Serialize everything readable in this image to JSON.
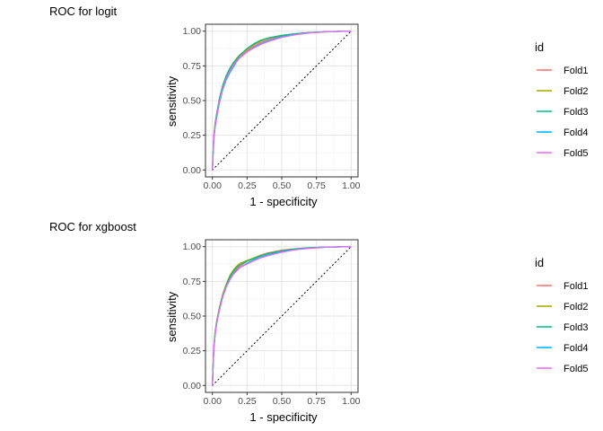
{
  "colors": {
    "Fold1": "#F8766D",
    "Fold2": "#A3A500",
    "Fold3": "#00BF7D",
    "Fold4": "#00B0F6",
    "Fold5": "#E76BF3"
  },
  "chart_data": [
    {
      "type": "line",
      "title": "ROC for logit",
      "xlabel": "1 - specificity",
      "ylabel": "sensitivity",
      "xlim": [
        0,
        1
      ],
      "ylim": [
        0,
        1
      ],
      "xticks": [
        "0.00",
        "0.25",
        "0.50",
        "0.75",
        "1.00"
      ],
      "yticks": [
        "0.00",
        "0.25",
        "0.50",
        "0.75",
        "1.00"
      ],
      "grid": true,
      "legend": {
        "title": "id",
        "position": "right"
      },
      "reference_line": {
        "style": "dotted",
        "from": [
          0,
          0
        ],
        "to": [
          1,
          1
        ]
      },
      "x": [
        0,
        0.01,
        0.02,
        0.03,
        0.05,
        0.075,
        0.1,
        0.125,
        0.15,
        0.175,
        0.2,
        0.25,
        0.3,
        0.35,
        0.4,
        0.5,
        0.6,
        0.7,
        0.8,
        0.9,
        1
      ],
      "series": [
        {
          "name": "Fold1",
          "values": [
            0,
            0.24,
            0.33,
            0.39,
            0.5,
            0.6,
            0.67,
            0.72,
            0.76,
            0.795,
            0.82,
            0.86,
            0.895,
            0.92,
            0.94,
            0.965,
            0.98,
            0.99,
            0.995,
            0.998,
            1
          ]
        },
        {
          "name": "Fold2",
          "values": [
            0,
            0.25,
            0.34,
            0.4,
            0.51,
            0.61,
            0.68,
            0.73,
            0.77,
            0.805,
            0.83,
            0.87,
            0.905,
            0.93,
            0.95,
            0.97,
            0.982,
            0.99,
            0.995,
            0.998,
            1
          ]
        },
        {
          "name": "Fold3",
          "values": [
            0,
            0.24,
            0.33,
            0.4,
            0.51,
            0.61,
            0.68,
            0.73,
            0.77,
            0.8,
            0.83,
            0.875,
            0.91,
            0.935,
            0.95,
            0.97,
            0.982,
            0.99,
            0.995,
            0.998,
            1
          ]
        },
        {
          "name": "Fold4",
          "values": [
            0,
            0.22,
            0.31,
            0.37,
            0.48,
            0.58,
            0.65,
            0.7,
            0.74,
            0.78,
            0.81,
            0.85,
            0.885,
            0.91,
            0.93,
            0.96,
            0.978,
            0.988,
            0.995,
            0.998,
            1
          ]
        },
        {
          "name": "Fold5",
          "values": [
            0,
            0.23,
            0.32,
            0.38,
            0.49,
            0.59,
            0.66,
            0.71,
            0.75,
            0.785,
            0.81,
            0.85,
            0.88,
            0.905,
            0.925,
            0.955,
            0.975,
            0.987,
            0.994,
            0.998,
            1
          ]
        }
      ]
    },
    {
      "type": "line",
      "title": "ROC for xgboost",
      "xlabel": "1 - specificity",
      "ylabel": "sensitivity",
      "xlim": [
        0,
        1
      ],
      "ylim": [
        0,
        1
      ],
      "xticks": [
        "0.00",
        "0.25",
        "0.50",
        "0.75",
        "1.00"
      ],
      "yticks": [
        "0.00",
        "0.25",
        "0.50",
        "0.75",
        "1.00"
      ],
      "grid": true,
      "legend": {
        "title": "id",
        "position": "right"
      },
      "reference_line": {
        "style": "dotted",
        "from": [
          0,
          0
        ],
        "to": [
          1,
          1
        ]
      },
      "x": [
        0,
        0.01,
        0.02,
        0.03,
        0.05,
        0.075,
        0.1,
        0.125,
        0.15,
        0.175,
        0.2,
        0.25,
        0.3,
        0.35,
        0.4,
        0.5,
        0.6,
        0.7,
        0.8,
        0.9,
        1
      ],
      "series": [
        {
          "name": "Fold1",
          "values": [
            0,
            0.27,
            0.38,
            0.45,
            0.55,
            0.65,
            0.72,
            0.77,
            0.81,
            0.84,
            0.86,
            0.895,
            0.92,
            0.94,
            0.955,
            0.975,
            0.985,
            0.992,
            0.996,
            0.998,
            1
          ]
        },
        {
          "name": "Fold2",
          "values": [
            0,
            0.28,
            0.39,
            0.46,
            0.56,
            0.66,
            0.73,
            0.79,
            0.83,
            0.86,
            0.88,
            0.9,
            0.92,
            0.935,
            0.95,
            0.97,
            0.983,
            0.991,
            0.996,
            0.998,
            1
          ]
        },
        {
          "name": "Fold3",
          "values": [
            0,
            0.27,
            0.38,
            0.45,
            0.55,
            0.65,
            0.72,
            0.78,
            0.82,
            0.85,
            0.87,
            0.895,
            0.915,
            0.935,
            0.95,
            0.97,
            0.984,
            0.992,
            0.996,
            0.998,
            1
          ]
        },
        {
          "name": "Fold4",
          "values": [
            0,
            0.26,
            0.37,
            0.44,
            0.54,
            0.64,
            0.71,
            0.76,
            0.8,
            0.83,
            0.85,
            0.88,
            0.905,
            0.925,
            0.94,
            0.965,
            0.98,
            0.99,
            0.995,
            0.998,
            1
          ]
        },
        {
          "name": "Fold5",
          "values": [
            0,
            0.26,
            0.37,
            0.44,
            0.54,
            0.64,
            0.71,
            0.76,
            0.8,
            0.825,
            0.85,
            0.875,
            0.9,
            0.92,
            0.935,
            0.96,
            0.978,
            0.988,
            0.995,
            0.998,
            1
          ]
        }
      ]
    }
  ]
}
